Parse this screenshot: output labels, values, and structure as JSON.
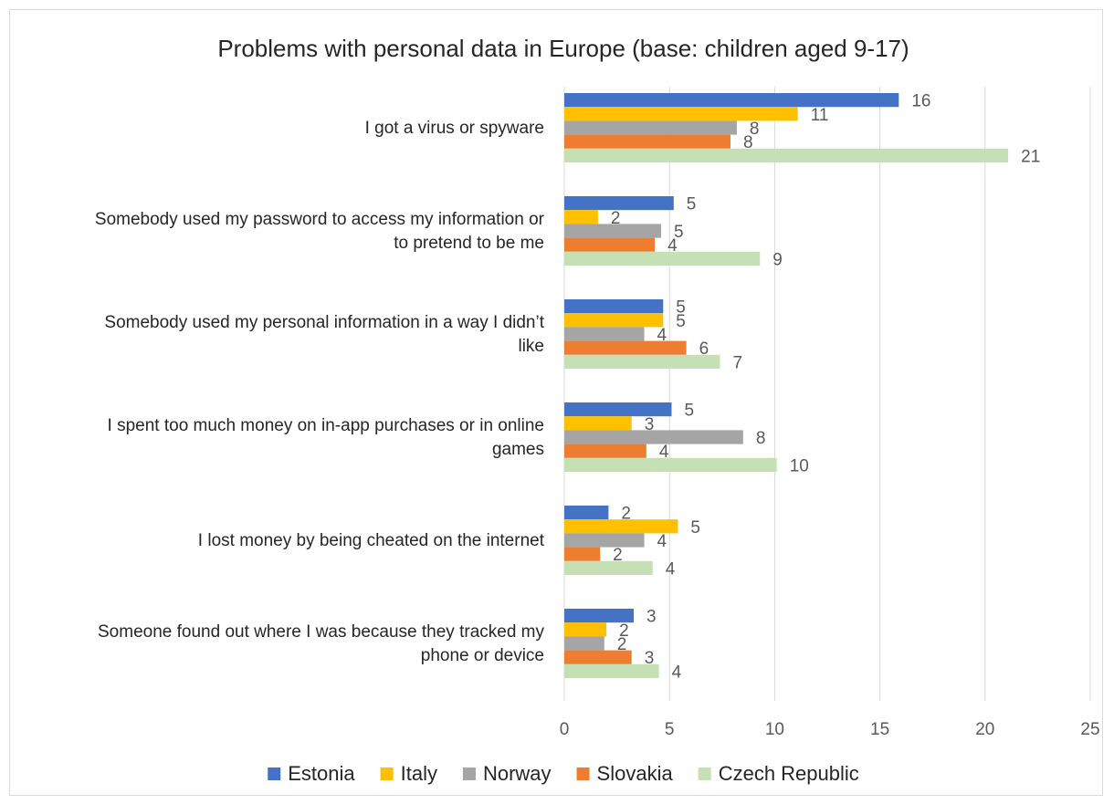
{
  "chart_data": {
    "type": "bar",
    "orientation": "horizontal",
    "title": "Problems with personal data in Europe (base: children aged 9-17)",
    "categories": [
      [
        "I got a virus or spyware"
      ],
      [
        "Somebody used my password to access my information or",
        "to pretend to be me"
      ],
      [
        "Somebody used my personal information in a way I didn’t",
        "like"
      ],
      [
        "I spent too much money on in-app purchases or in online",
        "games"
      ],
      [
        "I lost money by being cheated on the internet"
      ],
      [
        "Someone found out where I was because they tracked my",
        "phone or device"
      ]
    ],
    "series": [
      {
        "name": "Estonia",
        "color": "#4472C4",
        "values": [
          15.9,
          5.2,
          4.7,
          5.1,
          2.1,
          3.3
        ],
        "labels": [
          "16",
          "5",
          "5",
          "5",
          "2",
          "3"
        ]
      },
      {
        "name": "Italy",
        "color": "#FFC000",
        "values": [
          11.1,
          1.6,
          4.7,
          3.2,
          5.4,
          2.0
        ],
        "labels": [
          "11",
          "2",
          "5",
          "3",
          "5",
          "2"
        ]
      },
      {
        "name": "Norway",
        "color": "#A5A5A5",
        "values": [
          8.2,
          4.6,
          3.8,
          8.5,
          3.8,
          1.9
        ],
        "labels": [
          "8",
          "5",
          "4",
          "8",
          "4",
          "2"
        ]
      },
      {
        "name": "Slovakia",
        "color": "#ED7D31",
        "values": [
          7.9,
          4.3,
          5.8,
          3.9,
          1.7,
          3.2
        ],
        "labels": [
          "8",
          "4",
          "6",
          "4",
          "2",
          "3"
        ]
      },
      {
        "name": "Czech Republic",
        "color": "#C5E0B4",
        "values": [
          21.1,
          9.3,
          7.4,
          10.1,
          4.2,
          4.5
        ],
        "labels": [
          "21",
          "9",
          "7",
          "10",
          "4",
          "4"
        ]
      }
    ],
    "xlim": [
      0,
      25
    ],
    "xticks": [
      0,
      5,
      10,
      15,
      20,
      25
    ],
    "xticklabels": [
      "0",
      "5",
      "10",
      "15",
      "20",
      "25"
    ],
    "grid": "vertical",
    "legend": "bottom",
    "data_labels": true
  }
}
